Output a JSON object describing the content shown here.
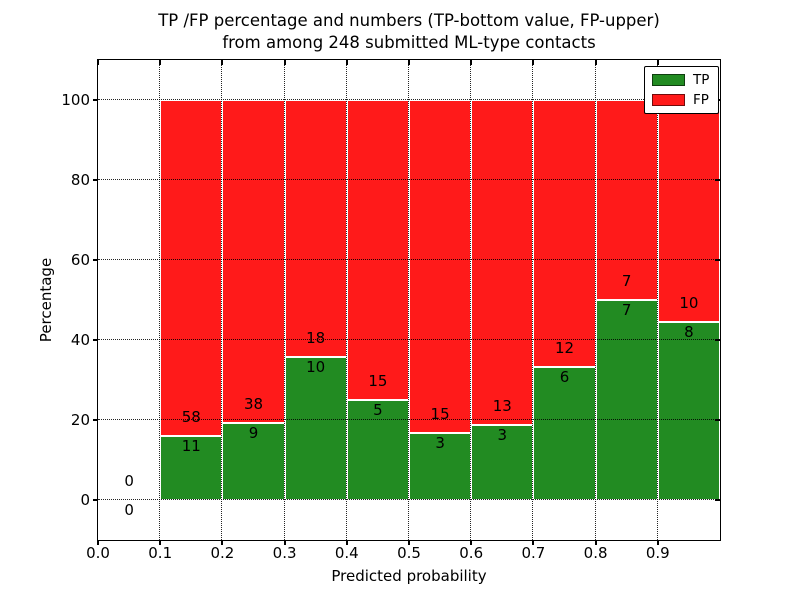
{
  "chart_data": {
    "type": "bar",
    "stacked": true,
    "normalized_to_percent": true,
    "title": "TP /FP percentage and numbers (TP-bottom value, FP-upper)\nfrom among 248 submitted ML-type contacts",
    "title_line1": "TP /FP percentage and numbers (TP-bottom value, FP-upper)",
    "title_line2": "from among 248 submitted ML-type contacts",
    "xlabel": "Predicted probability",
    "ylabel": "Percentage",
    "total_contacts": 248,
    "xlim": [
      0.0,
      1.0
    ],
    "ylim": [
      -10,
      110
    ],
    "grid": true,
    "xticks": [
      {
        "value": 0.0,
        "label": "0.0"
      },
      {
        "value": 0.1,
        "label": "0.1"
      },
      {
        "value": 0.2,
        "label": "0.2"
      },
      {
        "value": 0.3,
        "label": "0.3"
      },
      {
        "value": 0.4,
        "label": "0.4"
      },
      {
        "value": 0.5,
        "label": "0.5"
      },
      {
        "value": 0.6,
        "label": "0.6"
      },
      {
        "value": 0.7,
        "label": "0.7"
      },
      {
        "value": 0.8,
        "label": "0.8"
      },
      {
        "value": 0.9,
        "label": "0.9"
      }
    ],
    "yticks": [
      {
        "value": 0,
        "label": "0"
      },
      {
        "value": 20,
        "label": "20"
      },
      {
        "value": 40,
        "label": "40"
      },
      {
        "value": 60,
        "label": "60"
      },
      {
        "value": 80,
        "label": "80"
      },
      {
        "value": 100,
        "label": "100"
      }
    ],
    "bins": [
      {
        "range": [
          0.0,
          0.1
        ],
        "tp": 0,
        "fp": 0,
        "tp_pct": 0,
        "fp_pct": 0
      },
      {
        "range": [
          0.1,
          0.2
        ],
        "tp": 11,
        "fp": 58,
        "tp_pct": 15.94,
        "fp_pct": 84.06
      },
      {
        "range": [
          0.2,
          0.3
        ],
        "tp": 9,
        "fp": 38,
        "tp_pct": 19.15,
        "fp_pct": 80.85
      },
      {
        "range": [
          0.3,
          0.4
        ],
        "tp": 10,
        "fp": 18,
        "tp_pct": 35.71,
        "fp_pct": 64.29
      },
      {
        "range": [
          0.4,
          0.5
        ],
        "tp": 5,
        "fp": 15,
        "tp_pct": 25.0,
        "fp_pct": 75.0
      },
      {
        "range": [
          0.5,
          0.6
        ],
        "tp": 3,
        "fp": 15,
        "tp_pct": 16.67,
        "fp_pct": 83.33
      },
      {
        "range": [
          0.6,
          0.7
        ],
        "tp": 3,
        "fp": 13,
        "tp_pct": 18.75,
        "fp_pct": 81.25
      },
      {
        "range": [
          0.7,
          0.8
        ],
        "tp": 6,
        "fp": 12,
        "tp_pct": 33.33,
        "fp_pct": 66.67
      },
      {
        "range": [
          0.8,
          0.9
        ],
        "tp": 7,
        "fp": 7,
        "tp_pct": 50.0,
        "fp_pct": 50.0
      },
      {
        "range": [
          0.9,
          1.0
        ],
        "tp": 8,
        "fp": 10,
        "tp_pct": 44.44,
        "fp_pct": 55.56
      }
    ],
    "series": [
      {
        "name": "TP",
        "color": "#228b22",
        "counts": [
          0,
          11,
          9,
          10,
          5,
          3,
          3,
          6,
          7,
          8
        ]
      },
      {
        "name": "FP",
        "color": "#ff1a1a",
        "counts": [
          0,
          58,
          38,
          18,
          15,
          15,
          13,
          12,
          7,
          10
        ]
      }
    ],
    "legend": {
      "position": "upper right",
      "entries": [
        {
          "label": "TP",
          "color": "#228b22"
        },
        {
          "label": "FP",
          "color": "#ff1a1a"
        }
      ]
    },
    "colors": {
      "tp": "#228b22",
      "fp": "#ff1a1a",
      "grid": "#000000",
      "background": "#ffffff",
      "bar_edge": "#ffffff"
    }
  }
}
